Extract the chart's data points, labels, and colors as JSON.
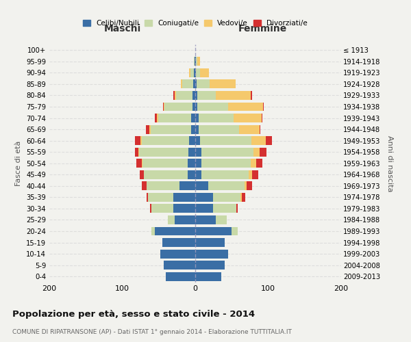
{
  "age_groups": [
    "0-4",
    "5-9",
    "10-14",
    "15-19",
    "20-24",
    "25-29",
    "30-34",
    "35-39",
    "40-44",
    "45-49",
    "50-54",
    "55-59",
    "60-64",
    "65-69",
    "70-74",
    "75-79",
    "80-84",
    "85-89",
    "90-94",
    "95-99",
    "100+"
  ],
  "birth_years": [
    "2009-2013",
    "2004-2008",
    "1999-2003",
    "1994-1998",
    "1989-1993",
    "1984-1988",
    "1979-1983",
    "1974-1978",
    "1969-1973",
    "1964-1968",
    "1959-1963",
    "1954-1958",
    "1949-1953",
    "1944-1948",
    "1939-1943",
    "1934-1938",
    "1929-1933",
    "1924-1928",
    "1919-1923",
    "1914-1918",
    "≤ 1913"
  ],
  "male": {
    "celibi": [
      40,
      43,
      48,
      45,
      55,
      28,
      30,
      30,
      22,
      10,
      10,
      9,
      8,
      6,
      6,
      4,
      4,
      3,
      2,
      1,
      0
    ],
    "coniugati": [
      0,
      0,
      0,
      0,
      5,
      10,
      30,
      35,
      45,
      60,
      62,
      68,
      65,
      55,
      45,
      38,
      22,
      15,
      5,
      1,
      0
    ],
    "vedovi": [
      0,
      0,
      0,
      0,
      0,
      0,
      0,
      0,
      0,
      0,
      1,
      1,
      2,
      2,
      2,
      1,
      2,
      2,
      1,
      0,
      0
    ],
    "divorziati": [
      0,
      0,
      0,
      0,
      0,
      0,
      2,
      2,
      6,
      6,
      8,
      5,
      8,
      5,
      2,
      1,
      2,
      0,
      0,
      0,
      0
    ]
  },
  "female": {
    "nubili": [
      36,
      40,
      45,
      40,
      50,
      28,
      24,
      24,
      18,
      8,
      8,
      8,
      7,
      5,
      5,
      3,
      3,
      2,
      1,
      1,
      0
    ],
    "coniugate": [
      0,
      0,
      0,
      0,
      8,
      15,
      32,
      38,
      50,
      65,
      68,
      72,
      70,
      55,
      48,
      42,
      25,
      18,
      6,
      2,
      0
    ],
    "vedove": [
      0,
      0,
      0,
      0,
      0,
      0,
      0,
      2,
      2,
      5,
      8,
      8,
      20,
      28,
      38,
      48,
      48,
      35,
      12,
      4,
      0
    ],
    "divorziate": [
      0,
      0,
      0,
      0,
      0,
      0,
      2,
      5,
      8,
      8,
      8,
      10,
      8,
      1,
      1,
      1,
      2,
      0,
      0,
      0,
      0
    ]
  },
  "colors": {
    "celibi": "#3A6EA5",
    "coniugati": "#C8D9A8",
    "vedovi": "#F5C96C",
    "divorziati": "#D43030"
  },
  "xlim": 200,
  "title": "Popolazione per età, sesso e stato civile - 2014",
  "subtitle": "COMUNE DI RIPATRANSONE (AP) - Dati ISTAT 1° gennaio 2014 - Elaborazione TUTTITALIA.IT",
  "ylabel": "Fasce di età",
  "ylabel_right": "Anni di nascita",
  "legend_labels": [
    "Celibi/Nubili",
    "Coniugati/e",
    "Vedovi/e",
    "Divorziati/e"
  ],
  "background_color": "#f2f2ee"
}
